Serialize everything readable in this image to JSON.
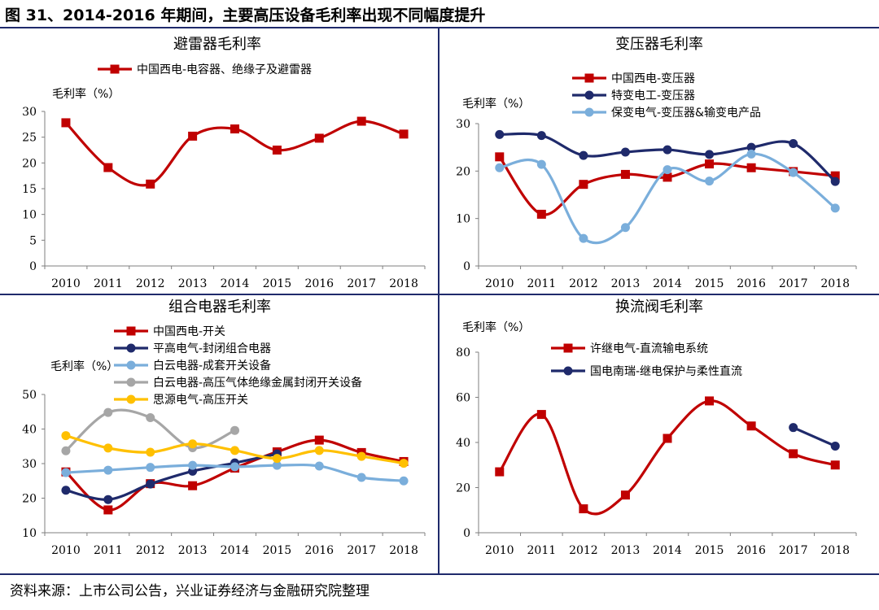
{
  "figure_title": "图 31、2014-2016 年期间，主要高压设备毛利率出现不同幅度提升",
  "source": "资料来源：上市公司公告，兴业证券经济与金融研究院整理",
  "chart_data": [
    {
      "type": "line",
      "title": "避雷器毛利率",
      "ylabel": "毛利率（%）",
      "xlabel": "",
      "ylim": [
        0,
        30
      ],
      "yticks": [
        0,
        5,
        10,
        15,
        20,
        25,
        30
      ],
      "categories": [
        "2010",
        "2011",
        "2012",
        "2013",
        "2014",
        "2015",
        "2016",
        "2017",
        "2018"
      ],
      "legend_position": "top-left",
      "grid": false,
      "series": [
        {
          "name": "中国西电-电容器、绝缘子及避雷器",
          "color": "#c00000",
          "marker": "square",
          "values": [
            27.8,
            19.1,
            15.9,
            25.2,
            26.6,
            22.5,
            24.8,
            28.1,
            25.6
          ]
        }
      ]
    },
    {
      "type": "line",
      "title": "变压器毛利率",
      "ylabel": "毛利率（%）",
      "xlabel": "",
      "ylim": [
        0,
        30
      ],
      "yticks": [
        0,
        10,
        20,
        30
      ],
      "categories": [
        "2010",
        "2011",
        "2012",
        "2013",
        "2014",
        "2015",
        "2016",
        "2017",
        "2018"
      ],
      "legend_position": "top-center",
      "grid": false,
      "series": [
        {
          "name": "中国西电-变压器",
          "color": "#c00000",
          "marker": "square",
          "values": [
            23.0,
            10.9,
            17.2,
            19.3,
            18.7,
            21.5,
            20.7,
            19.9,
            19.0
          ]
        },
        {
          "name": "特变电工-变压器",
          "color": "#1f2a6b",
          "marker": "circle",
          "values": [
            27.7,
            27.5,
            23.3,
            24.0,
            24.5,
            23.5,
            25.0,
            25.8,
            17.8
          ]
        },
        {
          "name": "保变电气-变压器&输变电产品",
          "color": "#7aaedb",
          "marker": "circle",
          "values": [
            20.7,
            21.4,
            5.8,
            8.1,
            20.3,
            17.9,
            23.6,
            19.7,
            12.2
          ]
        }
      ]
    },
    {
      "type": "line",
      "title": "组合电器毛利率",
      "ylabel": "毛利率（%）",
      "xlabel": "",
      "ylim": [
        10,
        50
      ],
      "yticks": [
        10,
        20,
        30,
        40,
        50
      ],
      "categories": [
        "2010",
        "2011",
        "2012",
        "2013",
        "2014",
        "2015",
        "2016",
        "2017",
        "2018"
      ],
      "legend_position": "top-center",
      "grid": false,
      "series": [
        {
          "name": "中国西电-开关",
          "color": "#c00000",
          "marker": "square",
          "values": [
            27.6,
            16.6,
            24.2,
            23.6,
            28.7,
            33.4,
            36.8,
            33.2,
            30.6
          ]
        },
        {
          "name": "平高电气-封闭组合电器",
          "color": "#1f2a6b",
          "marker": "circle",
          "values": [
            22.3,
            19.6,
            24.1,
            27.8,
            30.2,
            32.8,
            null,
            null,
            null
          ]
        },
        {
          "name": "白云电器-成套开关设备",
          "color": "#7aaedb",
          "marker": "circle",
          "values": [
            27.4,
            28.1,
            28.9,
            29.5,
            29.1,
            29.5,
            29.3,
            26.0,
            25.0
          ]
        },
        {
          "name": "白云电器-高压气体绝缘金属封闭开关设备",
          "color": "#a6a6a6",
          "marker": "circle",
          "values": [
            33.7,
            44.8,
            43.3,
            34.6,
            39.6,
            null,
            null,
            null,
            null
          ]
        },
        {
          "name": "思源电气-高压开关",
          "color": "#ffc000",
          "marker": "circle",
          "values": [
            38.1,
            34.5,
            33.3,
            35.7,
            33.8,
            31.5,
            33.8,
            32.1,
            30.1
          ]
        }
      ]
    },
    {
      "type": "line",
      "title": "换流阀毛利率",
      "ylabel": "毛利率（%）",
      "xlabel": "",
      "ylim": [
        0,
        80
      ],
      "yticks": [
        0,
        20,
        40,
        60,
        80
      ],
      "categories": [
        "2010",
        "2011",
        "2012",
        "2013",
        "2014",
        "2015",
        "2016",
        "2017",
        "2018"
      ],
      "legend_position": "top-center",
      "grid": false,
      "series": [
        {
          "name": "许继电气-直流输电系统",
          "color": "#c00000",
          "marker": "square",
          "values": [
            27.0,
            52.4,
            10.6,
            16.7,
            41.8,
            58.4,
            47.3,
            35.0,
            30.0
          ]
        },
        {
          "name": "国电南瑞-继电保护与柔性直流",
          "color": "#1f2a6b",
          "marker": "circle",
          "values": [
            null,
            null,
            null,
            null,
            null,
            null,
            null,
            46.6,
            38.4
          ]
        }
      ]
    }
  ]
}
